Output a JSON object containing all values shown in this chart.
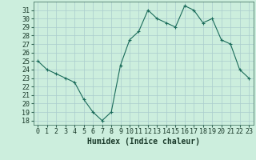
{
  "x": [
    0,
    1,
    2,
    3,
    4,
    5,
    6,
    7,
    8,
    9,
    10,
    11,
    12,
    13,
    14,
    15,
    16,
    17,
    18,
    19,
    20,
    21,
    22,
    23
  ],
  "y": [
    25,
    24,
    23.5,
    23,
    22.5,
    20.5,
    19,
    18,
    19,
    24.5,
    27.5,
    28.5,
    31,
    30,
    29.5,
    29,
    31.5,
    31,
    29.5,
    30,
    27.5,
    27,
    24,
    23
  ],
  "line_color": "#1a6b5a",
  "marker": "+",
  "bg_color": "#cceedd",
  "grid_color": "#aacccc",
  "xlabel": "Humidex (Indice chaleur)",
  "xlabel_fontsize": 7,
  "tick_fontsize": 6,
  "ylim": [
    17.5,
    32
  ],
  "xlim": [
    -0.5,
    23.5
  ],
  "yticks": [
    18,
    19,
    20,
    21,
    22,
    23,
    24,
    25,
    26,
    27,
    28,
    29,
    30,
    31
  ],
  "xticks": [
    0,
    1,
    2,
    3,
    4,
    5,
    6,
    7,
    8,
    9,
    10,
    11,
    12,
    13,
    14,
    15,
    16,
    17,
    18,
    19,
    20,
    21,
    22,
    23
  ]
}
